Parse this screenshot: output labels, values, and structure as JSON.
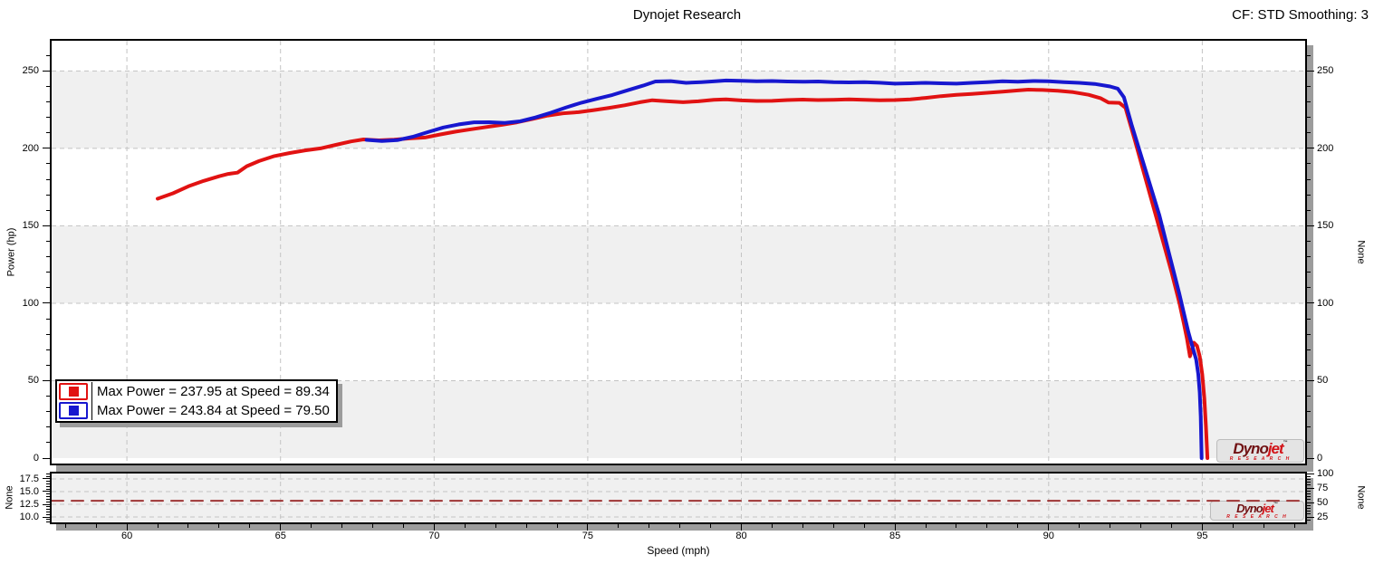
{
  "header": {
    "title": "Dynojet Research",
    "cf_label": "CF: STD Smoothing: 3"
  },
  "axes": {
    "power_left": "Power (hp)",
    "none_main_right": "None",
    "none_bottom_left": "None",
    "none_bottom_right": "None",
    "speed": "Speed (mph)"
  },
  "legend": {
    "items": [
      {
        "color": "#e11212",
        "label": "Max Power = 237.95 at Speed = 89.34"
      },
      {
        "color": "#1717cf",
        "label": "Max Power = 243.84 at Speed = 79.50"
      }
    ]
  },
  "logo": {
    "brand_a": "Dyno",
    "brand_b": "jet",
    "tm": "™",
    "research": "R E S E A R C H"
  },
  "colors": {
    "red": "#e11212",
    "blue": "#1717cf",
    "band": "#f0f0f0",
    "grid": "#c3c3c3",
    "shadow": "#9c9c9c",
    "dashed_red": "#9e3434"
  },
  "chart_data": [
    {
      "id": "main",
      "type": "line",
      "title": "Dynojet Research",
      "xlabel": "Speed (mph)",
      "ylabel": "Power (hp)",
      "ylabel_right": "None",
      "legend_position": "lower-left",
      "grid": "dashed gray at majors, alternating gray bands every 50 hp",
      "xlim": [
        57.55,
        98.35
      ],
      "ylim": [
        -3.5,
        269.5
      ],
      "y2lim": [
        -3.5,
        269.5
      ],
      "x_ticks": [
        [
          60,
          "60"
        ],
        [
          65,
          "65"
        ],
        [
          70,
          "70"
        ],
        [
          75,
          "75"
        ],
        [
          80,
          "80"
        ],
        [
          85,
          "85"
        ],
        [
          90,
          "90"
        ],
        [
          95,
          "95"
        ]
      ],
      "x_minor_step": 1,
      "x_minor_range": [
        58,
        98
      ],
      "y_ticks": [
        [
          0,
          "0"
        ],
        [
          50,
          "50"
        ],
        [
          100,
          "100"
        ],
        [
          150,
          "150"
        ],
        [
          200,
          "200"
        ],
        [
          250,
          "250"
        ]
      ],
      "y_minor_step": 10,
      "y2_ticks": [
        [
          0,
          "0"
        ],
        [
          50,
          "50"
        ],
        [
          100,
          "100"
        ],
        [
          150,
          "150"
        ],
        [
          200,
          "200"
        ],
        [
          250,
          "250"
        ]
      ],
      "y2_minor_step": 10,
      "bands": [
        [
          0,
          50
        ],
        [
          100,
          150
        ],
        [
          200,
          250
        ]
      ],
      "grid_y": [
        50,
        100,
        150,
        200,
        250
      ],
      "grid_x": [
        60,
        65,
        70,
        75,
        80,
        85,
        90,
        95
      ],
      "draw_x_axis": false,
      "series": [
        {
          "key": "red-run",
          "name": "Max Power = 237.95 at Speed = 89.34",
          "max_power": 237.95,
          "max_power_speed": 89.34,
          "color": "#e11212",
          "width": 4,
          "points": [
            [
              61.0,
              167.5
            ],
            [
              61.5,
              171
            ],
            [
              62.0,
              175.5
            ],
            [
              62.5,
              179
            ],
            [
              63.0,
              182
            ],
            [
              63.3,
              183.5
            ],
            [
              63.6,
              184.3
            ],
            [
              63.9,
              188.5
            ],
            [
              64.3,
              191.8
            ],
            [
              64.8,
              195
            ],
            [
              65.3,
              197
            ],
            [
              65.8,
              198.7
            ],
            [
              66.3,
              200
            ],
            [
              66.8,
              202.3
            ],
            [
              67.3,
              204.5
            ],
            [
              67.7,
              205.8
            ],
            [
              68.2,
              205.2
            ],
            [
              68.7,
              205.6
            ],
            [
              69.2,
              206.4
            ],
            [
              69.7,
              207
            ],
            [
              70.2,
              209
            ],
            [
              70.7,
              210.8
            ],
            [
              71.2,
              212.3
            ],
            [
              71.7,
              213.8
            ],
            [
              72.2,
              215.2
            ],
            [
              72.7,
              216.8
            ],
            [
              73.2,
              219
            ],
            [
              73.7,
              221.2
            ],
            [
              74.2,
              222.7
            ],
            [
              74.7,
              223.4
            ],
            [
              75.2,
              224.7
            ],
            [
              75.7,
              226.2
            ],
            [
              76.2,
              227.8
            ],
            [
              76.7,
              229.8
            ],
            [
              77.1,
              231.1
            ],
            [
              77.6,
              230.4
            ],
            [
              78.1,
              229.8
            ],
            [
              78.6,
              230.4
            ],
            [
              79.1,
              231.3
            ],
            [
              79.5,
              231.6
            ],
            [
              80.0,
              231.0
            ],
            [
              80.5,
              230.6
            ],
            [
              81.0,
              230.7
            ],
            [
              81.5,
              231.2
            ],
            [
              82.0,
              231.5
            ],
            [
              82.5,
              231.2
            ],
            [
              83.0,
              231.3
            ],
            [
              83.5,
              231.6
            ],
            [
              84.0,
              231.3
            ],
            [
              84.5,
              231.1
            ],
            [
              85.0,
              231.2
            ],
            [
              85.5,
              231.7
            ],
            [
              86.0,
              232.6
            ],
            [
              86.5,
              233.7
            ],
            [
              87.0,
              234.6
            ],
            [
              87.5,
              235.2
            ],
            [
              88.0,
              235.9
            ],
            [
              88.5,
              236.6
            ],
            [
              89.0,
              237.4
            ],
            [
              89.34,
              237.95
            ],
            [
              89.8,
              237.7
            ],
            [
              90.3,
              237.2
            ],
            [
              90.8,
              236.3
            ],
            [
              91.3,
              234.6
            ],
            [
              91.7,
              232.3
            ],
            [
              91.95,
              229.6
            ],
            [
              92.3,
              229.4
            ],
            [
              92.5,
              226.2
            ],
            [
              92.8,
              205.8
            ],
            [
              93.1,
              184.3
            ],
            [
              93.4,
              163
            ],
            [
              93.7,
              141.6
            ],
            [
              94.0,
              120.2
            ],
            [
              94.25,
              100.8
            ],
            [
              94.4,
              87.1
            ],
            [
              94.5,
              77.4
            ],
            [
              94.6,
              65.7
            ],
            [
              94.73,
              74.5
            ],
            [
              94.83,
              72.5
            ],
            [
              94.92,
              65.7
            ],
            [
              95.0,
              54.1
            ],
            [
              95.07,
              38.5
            ],
            [
              95.12,
              21
            ],
            [
              95.17,
              0
            ]
          ]
        },
        {
          "key": "blue-run",
          "name": "Max Power = 243.84 at Speed = 79.50",
          "max_power": 243.84,
          "max_power_speed": 79.5,
          "color": "#1717cf",
          "width": 4,
          "points": [
            [
              67.8,
              205.5
            ],
            [
              68.3,
              204.8
            ],
            [
              68.8,
              205.3
            ],
            [
              69.3,
              207.5
            ],
            [
              69.8,
              210.5
            ],
            [
              70.3,
              213.5
            ],
            [
              70.8,
              215.5
            ],
            [
              71.3,
              216.8
            ],
            [
              71.8,
              216.9
            ],
            [
              72.3,
              216.5
            ],
            [
              72.8,
              217.5
            ],
            [
              73.3,
              220
            ],
            [
              73.8,
              223
            ],
            [
              74.3,
              226.5
            ],
            [
              74.8,
              229.5
            ],
            [
              75.3,
              232
            ],
            [
              75.8,
              234.5
            ],
            [
              76.3,
              237.5
            ],
            [
              76.8,
              240.5
            ],
            [
              77.2,
              243.2
            ],
            [
              77.7,
              243.4
            ],
            [
              78.2,
              242.3
            ],
            [
              78.7,
              242.8
            ],
            [
              79.2,
              243.4
            ],
            [
              79.5,
              243.84
            ],
            [
              80.0,
              243.6
            ],
            [
              80.5,
              243.3
            ],
            [
              81.0,
              243.5
            ],
            [
              81.5,
              243.2
            ],
            [
              82.0,
              243.0
            ],
            [
              82.5,
              243.2
            ],
            [
              83.0,
              242.8
            ],
            [
              83.5,
              242.6
            ],
            [
              84.0,
              242.8
            ],
            [
              84.5,
              242.4
            ],
            [
              85.0,
              241.8
            ],
            [
              85.5,
              242.0
            ],
            [
              86.0,
              242.3
            ],
            [
              86.5,
              242.0
            ],
            [
              87.0,
              241.8
            ],
            [
              87.5,
              242.3
            ],
            [
              88.0,
              242.8
            ],
            [
              88.5,
              243.3
            ],
            [
              89.0,
              243.0
            ],
            [
              89.5,
              243.5
            ],
            [
              90.0,
              243.3
            ],
            [
              90.5,
              242.8
            ],
            [
              91.0,
              242.3
            ],
            [
              91.5,
              241.6
            ],
            [
              92.0,
              240.0
            ],
            [
              92.25,
              238.6
            ],
            [
              92.45,
              233.0
            ],
            [
              92.7,
              215.5
            ],
            [
              93.0,
              196
            ],
            [
              93.3,
              176.6
            ],
            [
              93.6,
              157.1
            ],
            [
              93.9,
              133.8
            ],
            [
              94.1,
              118.2
            ],
            [
              94.25,
              106.6
            ],
            [
              94.4,
              93.9
            ],
            [
              94.55,
              81.3
            ],
            [
              94.7,
              70.6
            ],
            [
              94.8,
              63.8
            ],
            [
              94.87,
              54.1
            ],
            [
              94.92,
              42.4
            ],
            [
              94.95,
              26.8
            ],
            [
              94.98,
              0
            ]
          ]
        }
      ]
    },
    {
      "id": "bottom",
      "type": "line",
      "ylabel": "None",
      "ylabel_right": "None",
      "xlabel": "Speed (mph)",
      "grid": "dashed gray at majors, light gray background",
      "xlim": [
        57.55,
        98.35
      ],
      "ylim": [
        8.93,
        18.57
      ],
      "y2lim": [
        15.63,
        100
      ],
      "x_ticks": [
        [
          60,
          "60"
        ],
        [
          65,
          "65"
        ],
        [
          70,
          "70"
        ],
        [
          75,
          "75"
        ],
        [
          80,
          "80"
        ],
        [
          85,
          "85"
        ],
        [
          90,
          "90"
        ],
        [
          95,
          "95"
        ]
      ],
      "x_minor_step": 1,
      "x_minor_range": [
        58,
        98
      ],
      "y_ticks": [
        [
          10,
          "10.0"
        ],
        [
          12.5,
          "12.5"
        ],
        [
          15,
          "15.0"
        ],
        [
          17.5,
          "17.5"
        ]
      ],
      "y_minor_step": 0.5,
      "y2_ticks": [
        [
          25,
          "25"
        ],
        [
          50,
          "50"
        ],
        [
          75,
          "75"
        ],
        [
          100,
          "100"
        ]
      ],
      "y2_minor_step": 5,
      "bands": [
        [
          8.93,
          18.57
        ]
      ],
      "grid_y": [
        10,
        12.5,
        15,
        17.5
      ],
      "grid_x": [
        60,
        65,
        70,
        75,
        80,
        85,
        90,
        95
      ],
      "draw_x_axis": true,
      "series": [
        {
          "key": "red-dashed-line",
          "name": "",
          "value": 13.2,
          "color": "#9e3434",
          "width": 2,
          "dash": "13,9",
          "points": [
            [
              57.55,
              13.2
            ],
            [
              98.35,
              13.2
            ]
          ]
        }
      ]
    }
  ]
}
